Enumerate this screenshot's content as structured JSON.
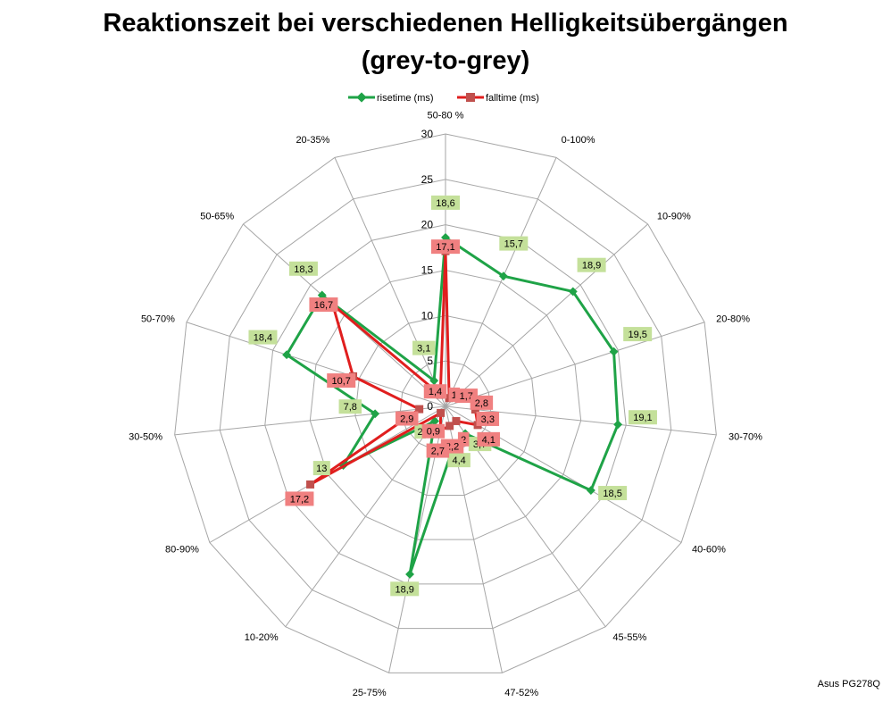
{
  "title_line1": "Reaktionszeit bei verschiedenen Helligkeitsübergängen",
  "title_line2": "(grey-to-grey)",
  "footer": "Asus PG278Q",
  "chart_data": {
    "type": "radar",
    "categories": [
      "50-80 %",
      "0-100%",
      "10-90%",
      "20-80%",
      "30-70%",
      "40-60%",
      "45-55%",
      "47-52%",
      "25-75%",
      "10-20%",
      "80-90%",
      "30-50%",
      "50-70%",
      "50-65%",
      "20-35%"
    ],
    "rlim": [
      0,
      30
    ],
    "ticks": [
      0,
      5,
      10,
      15,
      20,
      25,
      30
    ],
    "legend_position": "top",
    "series": [
      {
        "name": "risetime (ms)",
        "color": "#1fa347",
        "label_bg": "#c4e09a",
        "values": [
          18.6,
          15.7,
          18.9,
          19.5,
          19.1,
          18.5,
          3.7,
          4.4,
          18.9,
          2,
          13,
          7.8,
          18.4,
          18.3,
          3.1
        ],
        "labels": [
          "18,6",
          "15,7",
          "18,9",
          "19,5",
          "19,1",
          "18,5",
          "3,7",
          "4,4",
          "18,9",
          "2",
          "13",
          "7,8",
          "18,4",
          "18,3",
          "3,1"
        ]
      },
      {
        "name": "falltime (ms)",
        "color": "#e01e1e",
        "label_bg": "#f08080",
        "values": [
          17.1,
          1,
          1.7,
          2.8,
          3.3,
          4.1,
          2,
          2.2,
          2.7,
          0.9,
          17.2,
          2.9,
          10.7,
          16.7,
          1.4
        ],
        "labels": [
          "17,1",
          "1",
          "1,7",
          "2,8",
          "3,3",
          "4,1",
          "2",
          "2,2",
          "2,7",
          "0,9",
          "17,2",
          "2,9",
          "10,7",
          "16,7",
          "1,4"
        ]
      }
    ]
  }
}
